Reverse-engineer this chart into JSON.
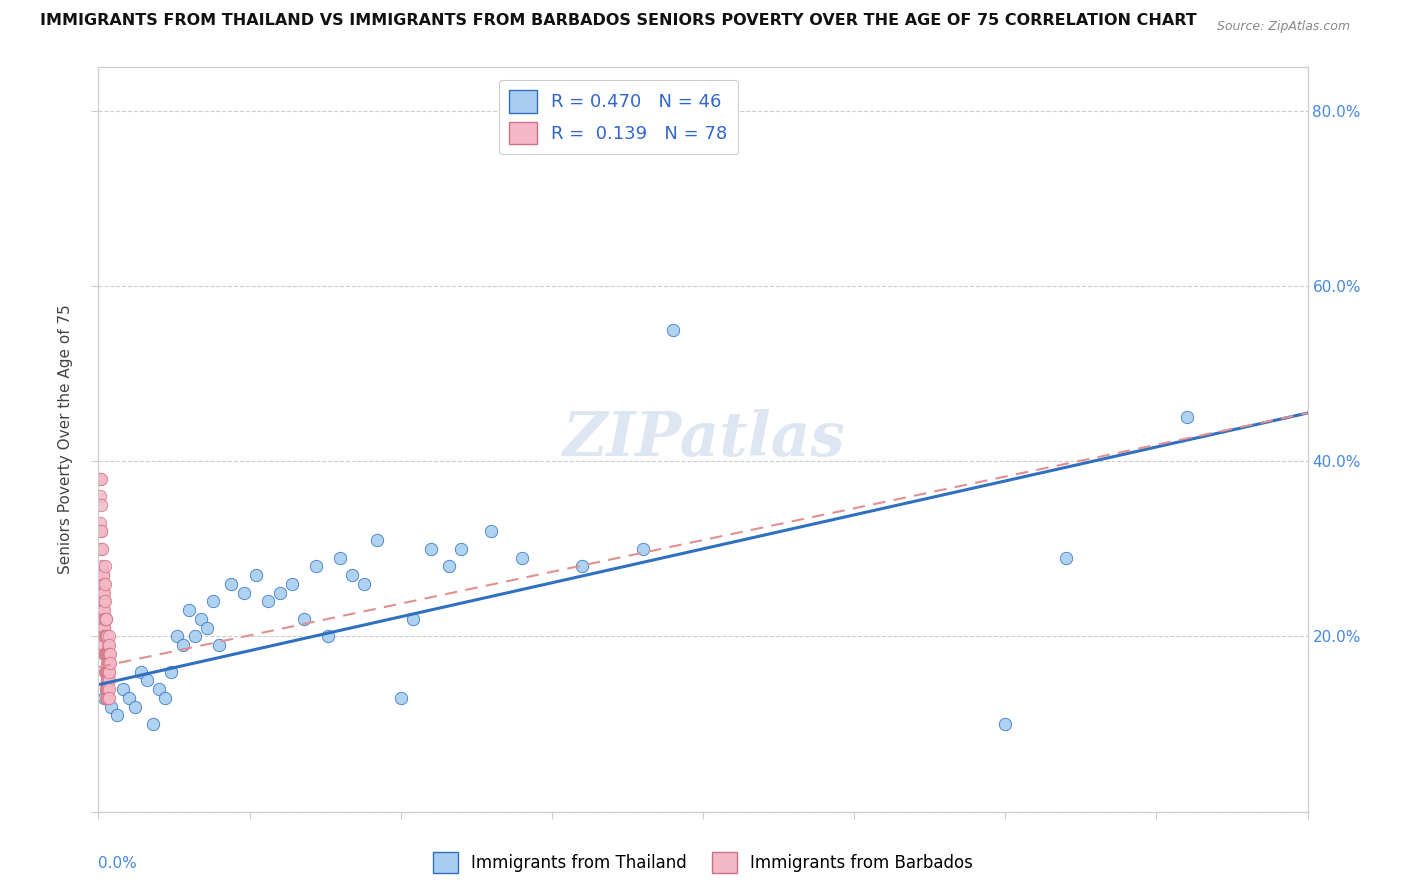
{
  "title": "IMMIGRANTS FROM THAILAND VS IMMIGRANTS FROM BARBADOS SENIORS POVERTY OVER THE AGE OF 75 CORRELATION CHART",
  "source": "Source: ZipAtlas.com",
  "ylabel": "Seniors Poverty Over the Age of 75",
  "legend_entry1": "R = 0.470   N = 46",
  "legend_entry2": "R =  0.139   N = 78",
  "legend_label1": "Immigrants from Thailand",
  "legend_label2": "Immigrants from Barbados",
  "color_thailand": "#a8cdf0",
  "color_barbados": "#f4b8c8",
  "color_line_thailand": "#3070c0",
  "color_line_barbados": "#e09090",
  "watermark_text": "ZIPatlas",
  "thailand_scatter": [
    [
      0.001,
      0.13
    ],
    [
      0.002,
      0.12
    ],
    [
      0.003,
      0.11
    ],
    [
      0.004,
      0.14
    ],
    [
      0.005,
      0.13
    ],
    [
      0.006,
      0.12
    ],
    [
      0.007,
      0.16
    ],
    [
      0.008,
      0.15
    ],
    [
      0.009,
      0.1
    ],
    [
      0.01,
      0.14
    ],
    [
      0.011,
      0.13
    ],
    [
      0.012,
      0.16
    ],
    [
      0.013,
      0.2
    ],
    [
      0.014,
      0.19
    ],
    [
      0.015,
      0.23
    ],
    [
      0.016,
      0.2
    ],
    [
      0.017,
      0.22
    ],
    [
      0.018,
      0.21
    ],
    [
      0.019,
      0.24
    ],
    [
      0.02,
      0.19
    ],
    [
      0.022,
      0.26
    ],
    [
      0.024,
      0.25
    ],
    [
      0.026,
      0.27
    ],
    [
      0.028,
      0.24
    ],
    [
      0.03,
      0.25
    ],
    [
      0.032,
      0.26
    ],
    [
      0.034,
      0.22
    ],
    [
      0.036,
      0.28
    ],
    [
      0.038,
      0.2
    ],
    [
      0.04,
      0.29
    ],
    [
      0.042,
      0.27
    ],
    [
      0.044,
      0.26
    ],
    [
      0.046,
      0.31
    ],
    [
      0.05,
      0.13
    ],
    [
      0.052,
      0.22
    ],
    [
      0.055,
      0.3
    ],
    [
      0.058,
      0.28
    ],
    [
      0.06,
      0.3
    ],
    [
      0.065,
      0.32
    ],
    [
      0.07,
      0.29
    ],
    [
      0.08,
      0.28
    ],
    [
      0.09,
      0.3
    ],
    [
      0.095,
      0.55
    ],
    [
      0.15,
      0.1
    ],
    [
      0.16,
      0.29
    ],
    [
      0.18,
      0.45
    ]
  ],
  "barbados_scatter": [
    [
      0.0002,
      0.38
    ],
    [
      0.0003,
      0.36
    ],
    [
      0.0003,
      0.33
    ],
    [
      0.0004,
      0.32
    ],
    [
      0.0004,
      0.3
    ],
    [
      0.0005,
      0.38
    ],
    [
      0.0005,
      0.35
    ],
    [
      0.0005,
      0.32
    ],
    [
      0.0006,
      0.3
    ],
    [
      0.0006,
      0.28
    ],
    [
      0.0007,
      0.27
    ],
    [
      0.0007,
      0.25
    ],
    [
      0.0007,
      0.24
    ],
    [
      0.0008,
      0.27
    ],
    [
      0.0008,
      0.25
    ],
    [
      0.0008,
      0.23
    ],
    [
      0.0009,
      0.26
    ],
    [
      0.0009,
      0.24
    ],
    [
      0.0009,
      0.22
    ],
    [
      0.0009,
      0.21
    ],
    [
      0.001,
      0.25
    ],
    [
      0.001,
      0.23
    ],
    [
      0.001,
      0.22
    ],
    [
      0.001,
      0.21
    ],
    [
      0.001,
      0.2
    ],
    [
      0.001,
      0.19
    ],
    [
      0.001,
      0.18
    ],
    [
      0.0011,
      0.28
    ],
    [
      0.0011,
      0.26
    ],
    [
      0.0011,
      0.24
    ],
    [
      0.0011,
      0.22
    ],
    [
      0.0011,
      0.2
    ],
    [
      0.0011,
      0.18
    ],
    [
      0.0011,
      0.16
    ],
    [
      0.0012,
      0.22
    ],
    [
      0.0012,
      0.2
    ],
    [
      0.0012,
      0.18
    ],
    [
      0.0012,
      0.16
    ],
    [
      0.0012,
      0.14
    ],
    [
      0.0013,
      0.22
    ],
    [
      0.0013,
      0.2
    ],
    [
      0.0013,
      0.18
    ],
    [
      0.0013,
      0.16
    ],
    [
      0.0013,
      0.14
    ],
    [
      0.0013,
      0.13
    ],
    [
      0.0014,
      0.2
    ],
    [
      0.0014,
      0.18
    ],
    [
      0.0014,
      0.16
    ],
    [
      0.0014,
      0.15
    ],
    [
      0.0014,
      0.14
    ],
    [
      0.0014,
      0.13
    ],
    [
      0.0015,
      0.2
    ],
    [
      0.0015,
      0.18
    ],
    [
      0.0015,
      0.17
    ],
    [
      0.0015,
      0.16
    ],
    [
      0.0015,
      0.15
    ],
    [
      0.0015,
      0.14
    ],
    [
      0.0015,
      0.13
    ],
    [
      0.0016,
      0.19
    ],
    [
      0.0016,
      0.18
    ],
    [
      0.0016,
      0.17
    ],
    [
      0.0016,
      0.16
    ],
    [
      0.0016,
      0.15
    ],
    [
      0.0016,
      0.14
    ],
    [
      0.0016,
      0.13
    ],
    [
      0.0017,
      0.18
    ],
    [
      0.0017,
      0.17
    ],
    [
      0.0017,
      0.16
    ],
    [
      0.0017,
      0.15
    ],
    [
      0.0017,
      0.14
    ],
    [
      0.0017,
      0.13
    ],
    [
      0.0018,
      0.2
    ],
    [
      0.0018,
      0.19
    ],
    [
      0.0018,
      0.18
    ],
    [
      0.0018,
      0.17
    ],
    [
      0.0018,
      0.16
    ],
    [
      0.0019,
      0.18
    ],
    [
      0.0019,
      0.17
    ]
  ],
  "xmin": 0.0,
  "xmax": 0.2,
  "ymin": 0.0,
  "ymax": 0.85,
  "th_line_x0": 0.0,
  "th_line_y0": 0.145,
  "th_line_x1": 0.2,
  "th_line_y1": 0.455,
  "ba_line_x0": 0.0,
  "ba_line_y0": 0.165,
  "ba_line_x1": 0.2,
  "ba_line_y1": 0.455
}
